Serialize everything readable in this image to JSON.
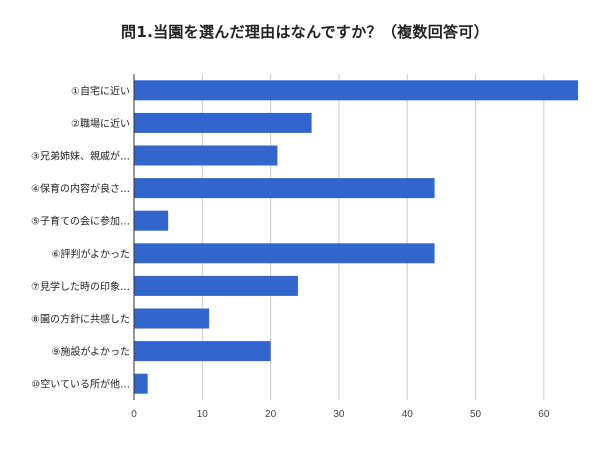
{
  "chart_data": {
    "type": "bar",
    "orientation": "horizontal",
    "title": "問1.当園を選んだ理由はなんですか？（複数回答可）",
    "categories": [
      "①自宅に近い",
      "②職場に近い",
      "③兄弟姉妹、親戚が…",
      "④保育の内容が良さ…",
      "⑤子育ての会に参加…",
      "⑥評判がよかった",
      "⑦見学した時の印象…",
      "⑧園の方針に共感した",
      "⑨施設がよかった",
      "⑩空いている所が他…"
    ],
    "values": [
      65,
      26,
      21,
      44,
      5,
      44,
      24,
      11,
      20,
      2
    ],
    "xlim": [
      0,
      65
    ],
    "xticks": [
      0,
      10,
      20,
      30,
      40,
      50,
      60
    ],
    "grid": true,
    "bar_color": "#3366cc",
    "grid_color": "#cccccc",
    "axis_color": "#333333"
  }
}
